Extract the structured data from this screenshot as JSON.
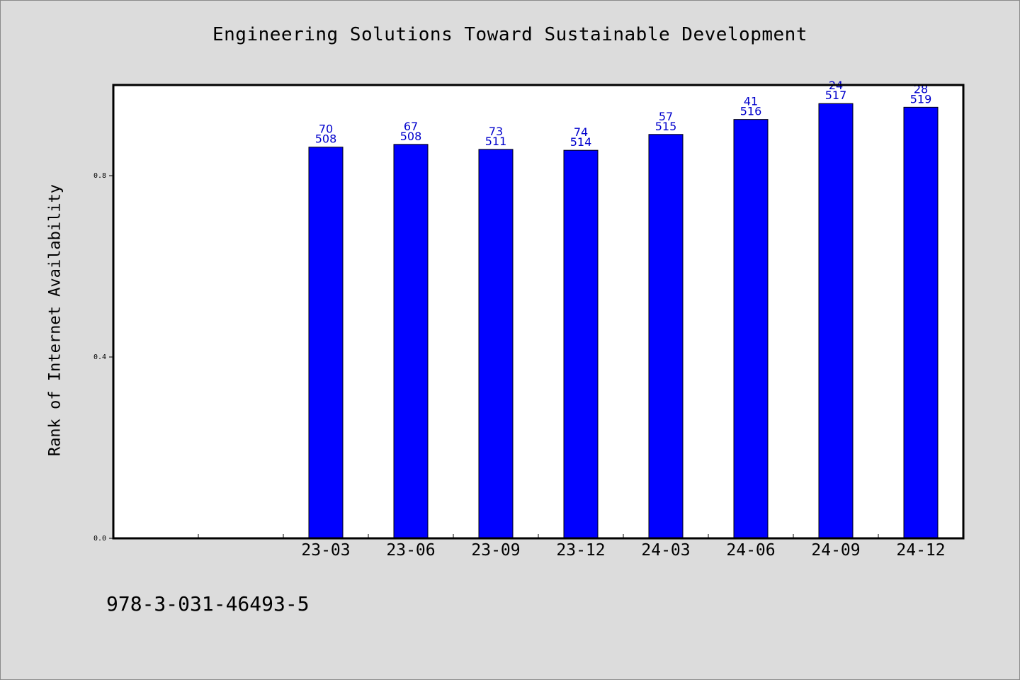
{
  "chart_data": {
    "type": "bar",
    "title": "Engineering Solutions Toward Sustainable Development",
    "ylabel": "Rank of Internet Availability",
    "xlabel": "",
    "ylim": [
      0,
      1.0
    ],
    "yticks": [
      0.0,
      0.4,
      0.8
    ],
    "ytick_labels": [
      "0.0",
      "0.4",
      "0.8"
    ],
    "slots": 10,
    "categories": [
      "23-03",
      "23-06",
      "23-09",
      "23-12",
      "24-03",
      "24-06",
      "24-09",
      "24-12"
    ],
    "values": [
      0.863,
      0.869,
      0.858,
      0.856,
      0.891,
      0.924,
      0.959,
      0.951
    ],
    "label_top": [
      "70",
      "67",
      "73",
      "74",
      "57",
      "41",
      "24",
      "28"
    ],
    "label_bottom": [
      "508",
      "508",
      "511",
      "514",
      "515",
      "516",
      "517",
      "519"
    ],
    "bar_color": "#0000ff",
    "label_color": "#0000cc",
    "grid": false,
    "legend": "none"
  },
  "footer": {
    "id_text": "978-3-031-46493-5"
  }
}
